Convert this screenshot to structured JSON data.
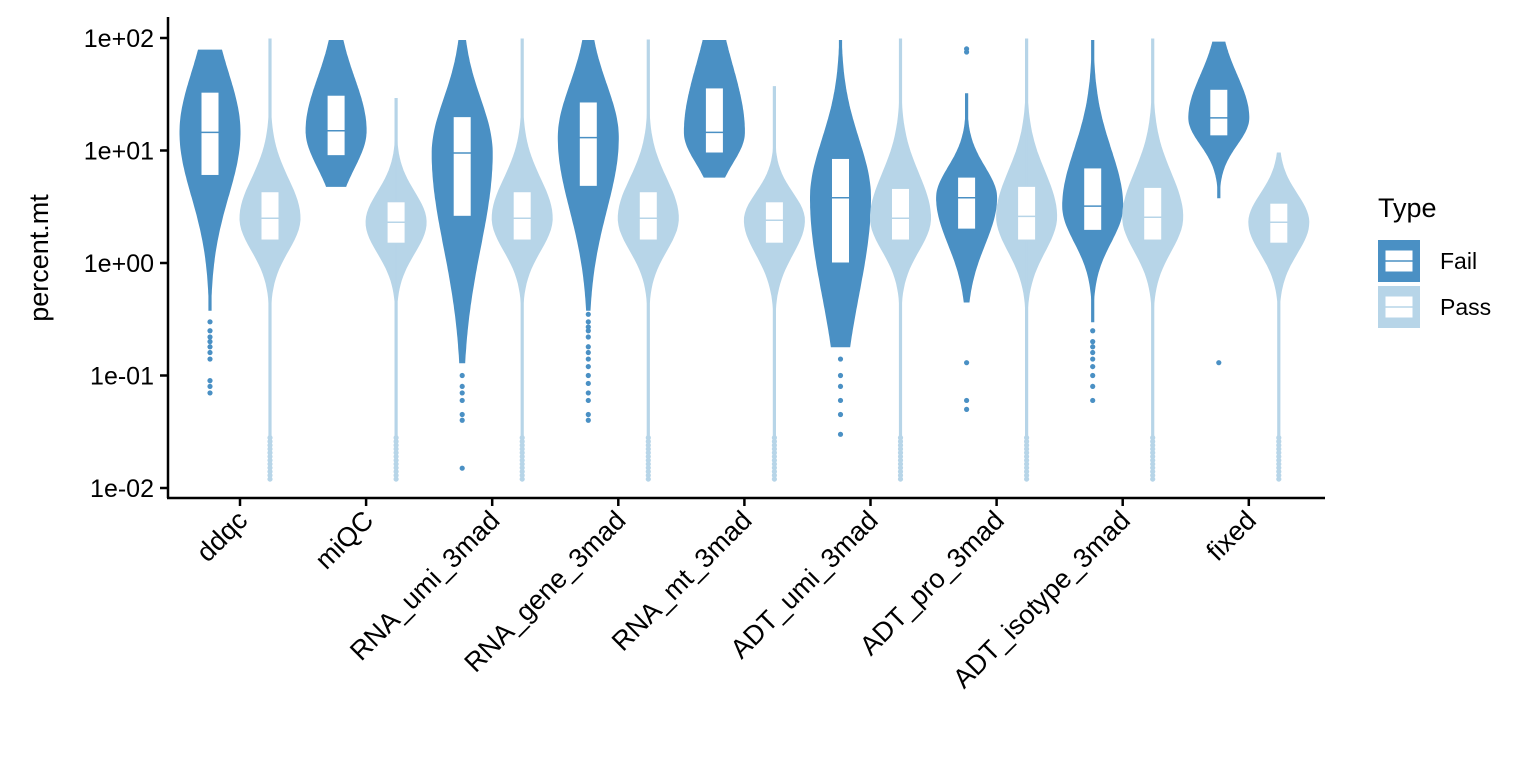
{
  "chart_data": {
    "type": "violin",
    "ylabel": "percent.mt",
    "yscale": "log10",
    "ylim": [
      0.01,
      100
    ],
    "yticks": [
      0.01,
      0.1,
      1,
      10,
      100
    ],
    "ytick_labels": [
      "1e-02",
      "1e-01",
      "1e+00",
      "1e+01",
      "1e+02"
    ],
    "categories": [
      "ddqc",
      "miQC",
      "RNA_umi_3mad",
      "RNA_gene_3mad",
      "RNA_mt_3mad",
      "ADT_umi_3mad",
      "ADT_pro_3mad",
      "ADT_isotype_3mad",
      "fixed"
    ],
    "legend": {
      "title": "Type",
      "position": "right",
      "entries": [
        "Fail",
        "Pass"
      ]
    },
    "series": [
      {
        "name": "Fail",
        "color": "#4a90c4",
        "groups": [
          {
            "min": 0.38,
            "q1": 6.0,
            "median": 14.5,
            "q3": 33,
            "max": 78,
            "outliers": [
              0.3,
              0.25,
              0.22,
              0.2,
              0.18,
              0.16,
              0.14,
              0.09,
              0.08,
              0.07
            ]
          },
          {
            "min": 4.8,
            "q1": 9.0,
            "median": 15.0,
            "q3": 31,
            "max": 95,
            "outliers": []
          },
          {
            "min": 0.13,
            "q1": 2.6,
            "median": 9.5,
            "q3": 20,
            "max": 95,
            "outliers": [
              0.1,
              0.08,
              0.07,
              0.06,
              0.045,
              0.04,
              0.015
            ]
          },
          {
            "min": 0.38,
            "q1": 4.8,
            "median": 13.0,
            "q3": 27,
            "max": 95,
            "outliers": [
              0.35,
              0.3,
              0.27,
              0.25,
              0.22,
              0.18,
              0.16,
              0.14,
              0.12,
              0.1,
              0.085,
              0.07,
              0.06,
              0.045,
              0.04
            ]
          },
          {
            "min": 5.8,
            "q1": 9.5,
            "median": 14.5,
            "q3": 36,
            "max": 95,
            "outliers": []
          },
          {
            "min": 0.18,
            "q1": 1.0,
            "median": 3.8,
            "q3": 8.5,
            "max": 95,
            "outliers": [
              0.14,
              0.1,
              0.08,
              0.06,
              0.045,
              0.03
            ]
          },
          {
            "min": 0.45,
            "q1": 2.0,
            "median": 3.8,
            "q3": 5.8,
            "max": 32,
            "outliers": [
              80,
              75,
              0.13,
              0.06,
              0.05
            ]
          },
          {
            "min": 0.3,
            "q1": 1.95,
            "median": 3.2,
            "q3": 7.0,
            "max": 95,
            "outliers": [
              0.25,
              0.2,
              0.18,
              0.16,
              0.14,
              0.12,
              0.1,
              0.08,
              0.06
            ]
          },
          {
            "min": 3.8,
            "q1": 13.5,
            "median": 19.5,
            "q3": 35,
            "max": 92,
            "outliers": [
              0.13
            ]
          }
        ]
      },
      {
        "name": "Pass",
        "color": "#b7d5e8",
        "groups": [
          {
            "min": 0.012,
            "q1": 1.6,
            "median": 2.5,
            "q3": 4.3,
            "max": 98,
            "outliers": []
          },
          {
            "min": 0.012,
            "q1": 1.5,
            "median": 2.3,
            "q3": 3.5,
            "max": 29,
            "outliers": []
          },
          {
            "min": 0.012,
            "q1": 1.6,
            "median": 2.5,
            "q3": 4.3,
            "max": 98,
            "outliers": []
          },
          {
            "min": 0.012,
            "q1": 1.6,
            "median": 2.5,
            "q3": 4.3,
            "max": 96,
            "outliers": []
          },
          {
            "min": 0.012,
            "q1": 1.5,
            "median": 2.4,
            "q3": 3.5,
            "max": 37,
            "outliers": []
          },
          {
            "min": 0.012,
            "q1": 1.6,
            "median": 2.5,
            "q3": 4.6,
            "max": 98,
            "outliers": []
          },
          {
            "min": 0.012,
            "q1": 1.6,
            "median": 2.6,
            "q3": 4.8,
            "max": 98,
            "outliers": []
          },
          {
            "min": 0.012,
            "q1": 1.6,
            "median": 2.55,
            "q3": 4.7,
            "max": 98,
            "outliers": []
          },
          {
            "min": 0.012,
            "q1": 1.5,
            "median": 2.3,
            "q3": 3.4,
            "max": 9.5,
            "outliers": []
          }
        ]
      }
    ]
  }
}
